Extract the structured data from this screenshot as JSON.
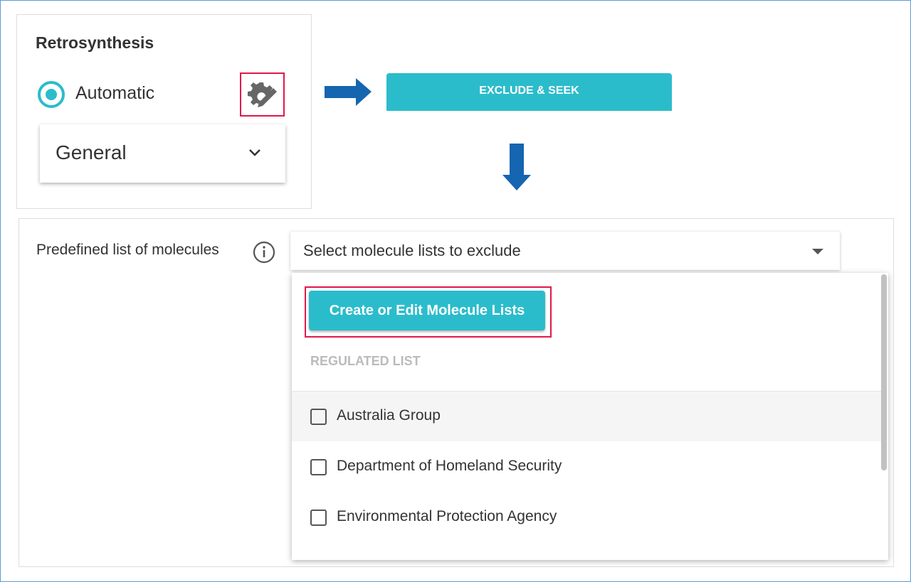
{
  "retrosynthesis": {
    "title": "Retrosynthesis",
    "mode_label": "Automatic",
    "mode_selected": true,
    "profile_value": "General"
  },
  "action_button": "EXCLUDE & SEEK",
  "exclusion": {
    "label": "Predefined list of molecules",
    "select_placeholder": "Select molecule lists to exclude",
    "create_button": "Create or Edit Molecule Lists",
    "section_header": "REGULATED LIST",
    "items": [
      {
        "label": "Australia Group",
        "checked": false
      },
      {
        "label": "Department of Homeland Security",
        "checked": false
      },
      {
        "label": "Environmental Protection Agency",
        "checked": false
      }
    ]
  },
  "colors": {
    "accent": "#2bbccb",
    "arrow": "#1565b0",
    "highlight": "#e0184a"
  }
}
